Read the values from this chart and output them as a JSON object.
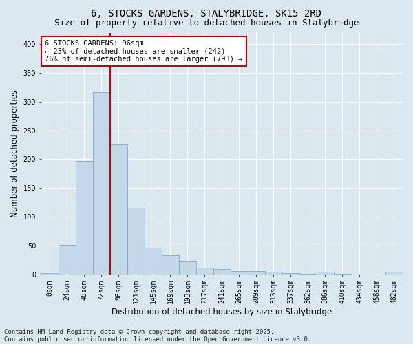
{
  "title_line1": "6, STOCKS GARDENS, STALYBRIDGE, SK15 2RD",
  "title_line2": "Size of property relative to detached houses in Stalybridge",
  "xlabel": "Distribution of detached houses by size in Stalybridge",
  "ylabel": "Number of detached properties",
  "categories": [
    "0sqm",
    "24sqm",
    "48sqm",
    "72sqm",
    "96sqm",
    "121sqm",
    "145sqm",
    "169sqm",
    "193sqm",
    "217sqm",
    "241sqm",
    "265sqm",
    "289sqm",
    "313sqm",
    "337sqm",
    "362sqm",
    "386sqm",
    "410sqm",
    "434sqm",
    "458sqm",
    "482sqm"
  ],
  "values": [
    2,
    51,
    197,
    317,
    226,
    115,
    46,
    33,
    22,
    12,
    9,
    5,
    6,
    4,
    2,
    1,
    4,
    1,
    0,
    0,
    4
  ],
  "bar_color": "#c5d8ea",
  "bar_edge_color": "#7aaac8",
  "vline_index": 3,
  "vline_color": "#cc0000",
  "annotation_text": "6 STOCKS GARDENS: 96sqm\n← 23% of detached houses are smaller (242)\n76% of semi-detached houses are larger (793) →",
  "annotation_box_facecolor": "#ffffff",
  "annotation_box_edgecolor": "#cc0000",
  "ylim": [
    0,
    420
  ],
  "yticks": [
    0,
    50,
    100,
    150,
    200,
    250,
    300,
    350,
    400
  ],
  "bg_color": "#dce8f0",
  "grid_color": "#ffffff",
  "footer_text": "Contains HM Land Registry data © Crown copyright and database right 2025.\nContains public sector information licensed under the Open Government Licence v3.0.",
  "title_fontsize": 10,
  "subtitle_fontsize": 9,
  "axis_label_fontsize": 8.5,
  "tick_fontsize": 7,
  "annotation_fontsize": 7.5,
  "footer_fontsize": 6.5
}
